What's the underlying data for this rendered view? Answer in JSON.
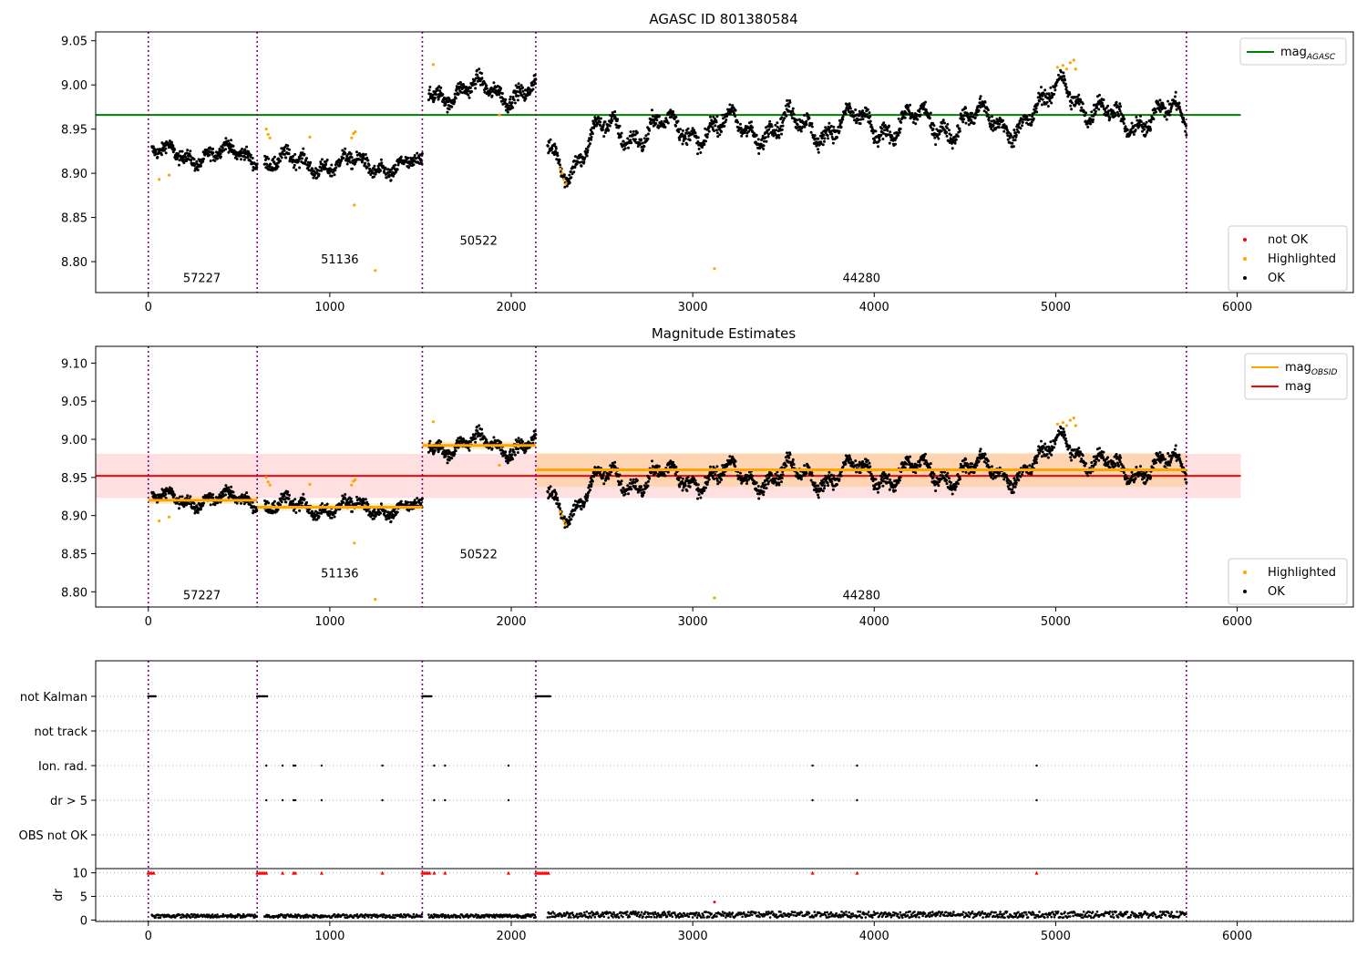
{
  "figure": {
    "title": "AGASC ID 801380584"
  },
  "chart_data": [
    {
      "type": "scatter",
      "title": "AGASC ID 801380584",
      "xlabel": "",
      "ylabel": "",
      "xlim": [
        -290,
        6640
      ],
      "ylim": [
        8.765,
        9.06
      ],
      "x_ticks": [
        0,
        1000,
        2000,
        3000,
        4000,
        5000,
        6000
      ],
      "y_ticks": [
        9.05,
        9.0,
        8.95,
        8.9,
        8.85,
        8.8
      ],
      "y_tick_labels": [
        "9.05",
        "9.00",
        "8.95",
        "8.90",
        "8.85",
        "8.80"
      ],
      "obsid_boundaries": [
        0,
        600,
        1510,
        2135,
        5720
      ],
      "obsid_labels": [
        {
          "text": "57227",
          "x": 295,
          "y": 8.777
        },
        {
          "text": "51136",
          "x": 1055,
          "y": 8.798
        },
        {
          "text": "50522",
          "x": 1820,
          "y": 8.819
        },
        {
          "text": "44280",
          "x": 3930,
          "y": 8.777
        }
      ],
      "segments": [
        {
          "x0": 20,
          "x1": 600,
          "mean": 8.921,
          "amp": 0.008,
          "noise": 0.007,
          "n": 300,
          "trend": 0
        },
        {
          "x0": 640,
          "x1": 1510,
          "mean": 8.91,
          "amp": 0.008,
          "noise": 0.008,
          "n": 420,
          "trend": -0.006
        },
        {
          "x0": 1545,
          "x1": 2135,
          "mean": 8.993,
          "amp": 0.01,
          "noise": 0.008,
          "n": 320,
          "trend": 0
        },
        {
          "x0": 2200,
          "x1": 5720,
          "mean": 8.955,
          "amp": 0.014,
          "noise": 0.009,
          "n": 1700,
          "trend": 0.018,
          "dip": true,
          "bump": true
        }
      ],
      "highlighted": [
        [
          60,
          8.893
        ],
        [
          115,
          8.898
        ],
        [
          650,
          8.95
        ],
        [
          660,
          8.944
        ],
        [
          670,
          8.94
        ],
        [
          890,
          8.941
        ],
        [
          1120,
          8.94
        ],
        [
          1130,
          8.945
        ],
        [
          1140,
          8.947
        ],
        [
          1135,
          8.864
        ],
        [
          1250,
          8.79
        ],
        [
          1570,
          9.023
        ],
        [
          1935,
          8.966
        ],
        [
          2270,
          8.905
        ],
        [
          2280,
          8.9
        ],
        [
          2290,
          8.893
        ],
        [
          2300,
          8.888
        ],
        [
          3120,
          8.792
        ],
        [
          5010,
          9.02
        ],
        [
          5040,
          9.022
        ],
        [
          5060,
          9.018
        ],
        [
          5080,
          9.025
        ],
        [
          5100,
          9.028
        ],
        [
          5110,
          9.018
        ]
      ],
      "series": [
        {
          "name": "mag_AGASC",
          "value": 8.966,
          "x_range": [
            -290,
            6020
          ],
          "color": "#008000"
        }
      ],
      "legend_top": {
        "items": [
          {
            "label": "mag",
            "subscript": "AGASC",
            "color": "#008000"
          }
        ],
        "position": "top-right"
      },
      "legend_bottom": {
        "items": [
          {
            "label": "not OK",
            "color": "#ff0000"
          },
          {
            "label": "Highlighted",
            "color": "#ffa500"
          },
          {
            "label": "OK",
            "color": "#000000"
          }
        ],
        "position": "bottom-right"
      }
    },
    {
      "type": "scatter",
      "title": "Magnitude Estimates",
      "xlabel": "",
      "ylabel": "",
      "xlim": [
        -290,
        6640
      ],
      "ylim": [
        8.78,
        9.122
      ],
      "x_ticks": [
        0,
        1000,
        2000,
        3000,
        4000,
        5000,
        6000
      ],
      "y_ticks": [
        9.1,
        9.05,
        9.0,
        8.95,
        8.9,
        8.85,
        8.8
      ],
      "y_tick_labels": [
        "9.10",
        "9.05",
        "9.00",
        "8.95",
        "8.90",
        "8.85",
        "8.80"
      ],
      "obsid_labels": [
        {
          "text": "57227",
          "x": 295,
          "y": 8.79
        },
        {
          "text": "51136",
          "x": 1055,
          "y": 8.819
        },
        {
          "text": "50522",
          "x": 1820,
          "y": 8.844
        },
        {
          "text": "44280",
          "x": 3930,
          "y": 8.79
        }
      ],
      "mag_obsid": [
        {
          "x0": 0,
          "x1": 600,
          "value": 8.92,
          "err": 0.005
        },
        {
          "x0": 600,
          "x1": 1510,
          "value": 8.911,
          "err": 0.005
        },
        {
          "x0": 1510,
          "x1": 2135,
          "value": 8.992,
          "err": 0.005
        },
        {
          "x0": 2135,
          "x1": 5720,
          "value": 8.96,
          "err": 0.022
        }
      ],
      "mag": {
        "value": 8.952,
        "err": 0.029,
        "x_range": [
          -290,
          6020
        ]
      },
      "series": [
        {
          "name": "mag_OBSID",
          "color": "#ffa500"
        },
        {
          "name": "mag",
          "color": "#ff0000"
        }
      ],
      "legend_top": {
        "items": [
          {
            "label": "mag",
            "subscript": "OBSID",
            "color": "#ffa500"
          },
          {
            "label": "mag",
            "subscript": "",
            "color": "#ff0000"
          }
        ],
        "position": "top-right"
      },
      "legend_bottom": {
        "items": [
          {
            "label": "Highlighted",
            "color": "#ffa500"
          },
          {
            "label": "OK",
            "color": "#000000"
          }
        ],
        "position": "bottom-right"
      }
    },
    {
      "type": "scatter",
      "title": "",
      "xlim": [
        -290,
        6640
      ],
      "x_ticks": [
        0,
        1000,
        2000,
        3000,
        4000,
        5000,
        6000
      ],
      "flag_rows": [
        "not Kalman",
        "not track",
        "Ion. rad.",
        "dr > 5",
        "OBS not OK"
      ],
      "not_kalman_ranges": [
        [
          0,
          40
        ],
        [
          600,
          655
        ],
        [
          1510,
          1560
        ],
        [
          2135,
          2215
        ]
      ],
      "ion_rad_x": [
        650,
        740,
        800,
        810,
        955,
        1290,
        1575,
        1635,
        1985,
        3660,
        3905,
        4895
      ],
      "dr_gt5_x": [
        650,
        740,
        800,
        810,
        955,
        1290,
        1575,
        1635,
        1985,
        3660,
        3905,
        4895
      ],
      "dr": {
        "ylabel": "dr",
        "ylim": [
          -0.3,
          10.7
        ],
        "y_ticks": [
          0,
          5,
          10
        ],
        "y_tick_labels": [
          "0",
          "5",
          "10"
        ],
        "capped_value": 10,
        "capped_x": [
          0,
          10,
          20,
          30,
          600,
          610,
          620,
          630,
          640,
          650,
          740,
          800,
          810,
          955,
          1290,
          1510,
          1520,
          1530,
          1540,
          1550,
          1575,
          1635,
          1985,
          2135,
          2145,
          2155,
          2165,
          2175,
          2185,
          2195,
          2205,
          3660,
          3905,
          4895
        ],
        "outlier": [
          3120,
          3.8
        ]
      }
    }
  ]
}
